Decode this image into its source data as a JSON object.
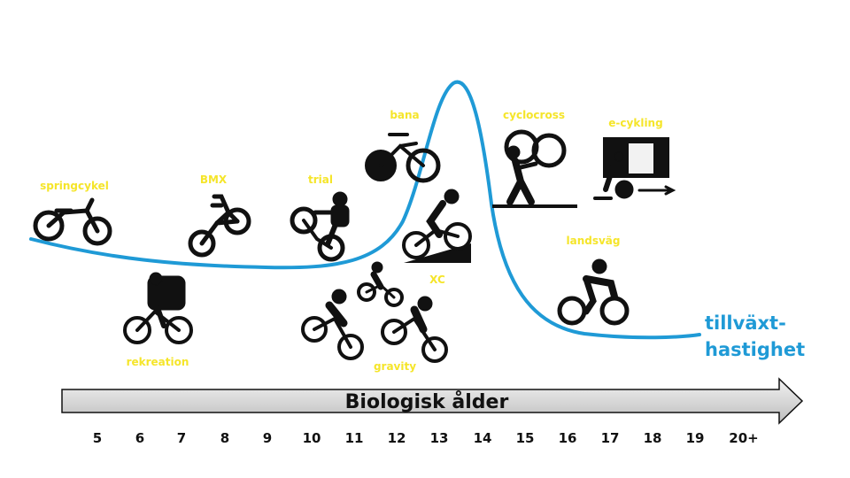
{
  "colors": {
    "label_yellow": "#f5e52a",
    "curve_blue": "#1f9ad6",
    "icon_black": "#111111",
    "arrow_fill": "#d9d9d9"
  },
  "axis": {
    "title": "Biologisk ålder",
    "ticks": [
      "5",
      "6",
      "7",
      "8",
      "9",
      "10",
      "11",
      "12",
      "13",
      "14",
      "15",
      "16",
      "17",
      "18",
      "19",
      "20+"
    ]
  },
  "curve_label": {
    "line1": "tillväxt-",
    "line2": "hastighet"
  },
  "disciplines": {
    "springcykel": "springcykel",
    "rekreation": "rekreation",
    "bmx": "BMX",
    "trial": "trial",
    "gravity": "gravity",
    "bana": "bana",
    "xc": "XC",
    "cyclocross": "cyclocross",
    "ecykling": "e-cykling",
    "landsvag": "landsväg"
  },
  "icons": [
    "balance-bike-icon",
    "touring-cyclist-icon",
    "bmx-bike-icon",
    "trial-rider-icon",
    "gravity-riders-icon",
    "track-bike-icon",
    "xc-rider-icon",
    "cyclocross-runner-icon",
    "e-cycling-trainer-icon",
    "road-cyclist-icon"
  ]
}
